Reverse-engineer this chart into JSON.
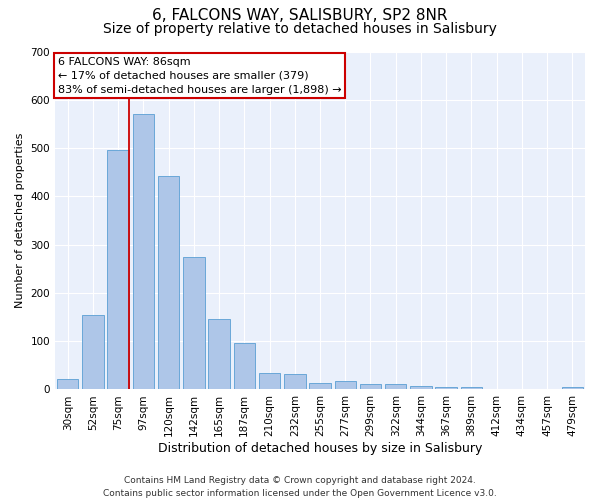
{
  "title": "6, FALCONS WAY, SALISBURY, SP2 8NR",
  "subtitle": "Size of property relative to detached houses in Salisbury",
  "xlabel": "Distribution of detached houses by size in Salisbury",
  "ylabel": "Number of detached properties",
  "categories": [
    "30sqm",
    "52sqm",
    "75sqm",
    "97sqm",
    "120sqm",
    "142sqm",
    "165sqm",
    "187sqm",
    "210sqm",
    "232sqm",
    "255sqm",
    "277sqm",
    "299sqm",
    "322sqm",
    "344sqm",
    "367sqm",
    "389sqm",
    "412sqm",
    "434sqm",
    "457sqm",
    "479sqm"
  ],
  "values": [
    22,
    155,
    495,
    570,
    443,
    275,
    145,
    97,
    35,
    32,
    14,
    17,
    12,
    12,
    7,
    5,
    5,
    0,
    0,
    0,
    6
  ],
  "bar_color": "#aec6e8",
  "bar_edge_color": "#5a9fd4",
  "vline_color": "#cc0000",
  "vline_pos": 2.43,
  "annotation_text": "6 FALCONS WAY: 86sqm\n← 17% of detached houses are smaller (379)\n83% of semi-detached houses are larger (1,898) →",
  "annotation_box_color": "#cc0000",
  "ylim": [
    0,
    700
  ],
  "yticks": [
    0,
    100,
    200,
    300,
    400,
    500,
    600,
    700
  ],
  "footnote": "Contains HM Land Registry data © Crown copyright and database right 2024.\nContains public sector information licensed under the Open Government Licence v3.0.",
  "bg_color": "#eaf0fb",
  "grid_color": "#ffffff",
  "title_fontsize": 11,
  "subtitle_fontsize": 10,
  "xlabel_fontsize": 9,
  "ylabel_fontsize": 8,
  "tick_fontsize": 7.5,
  "footnote_fontsize": 6.5,
  "annotation_fontsize": 8
}
